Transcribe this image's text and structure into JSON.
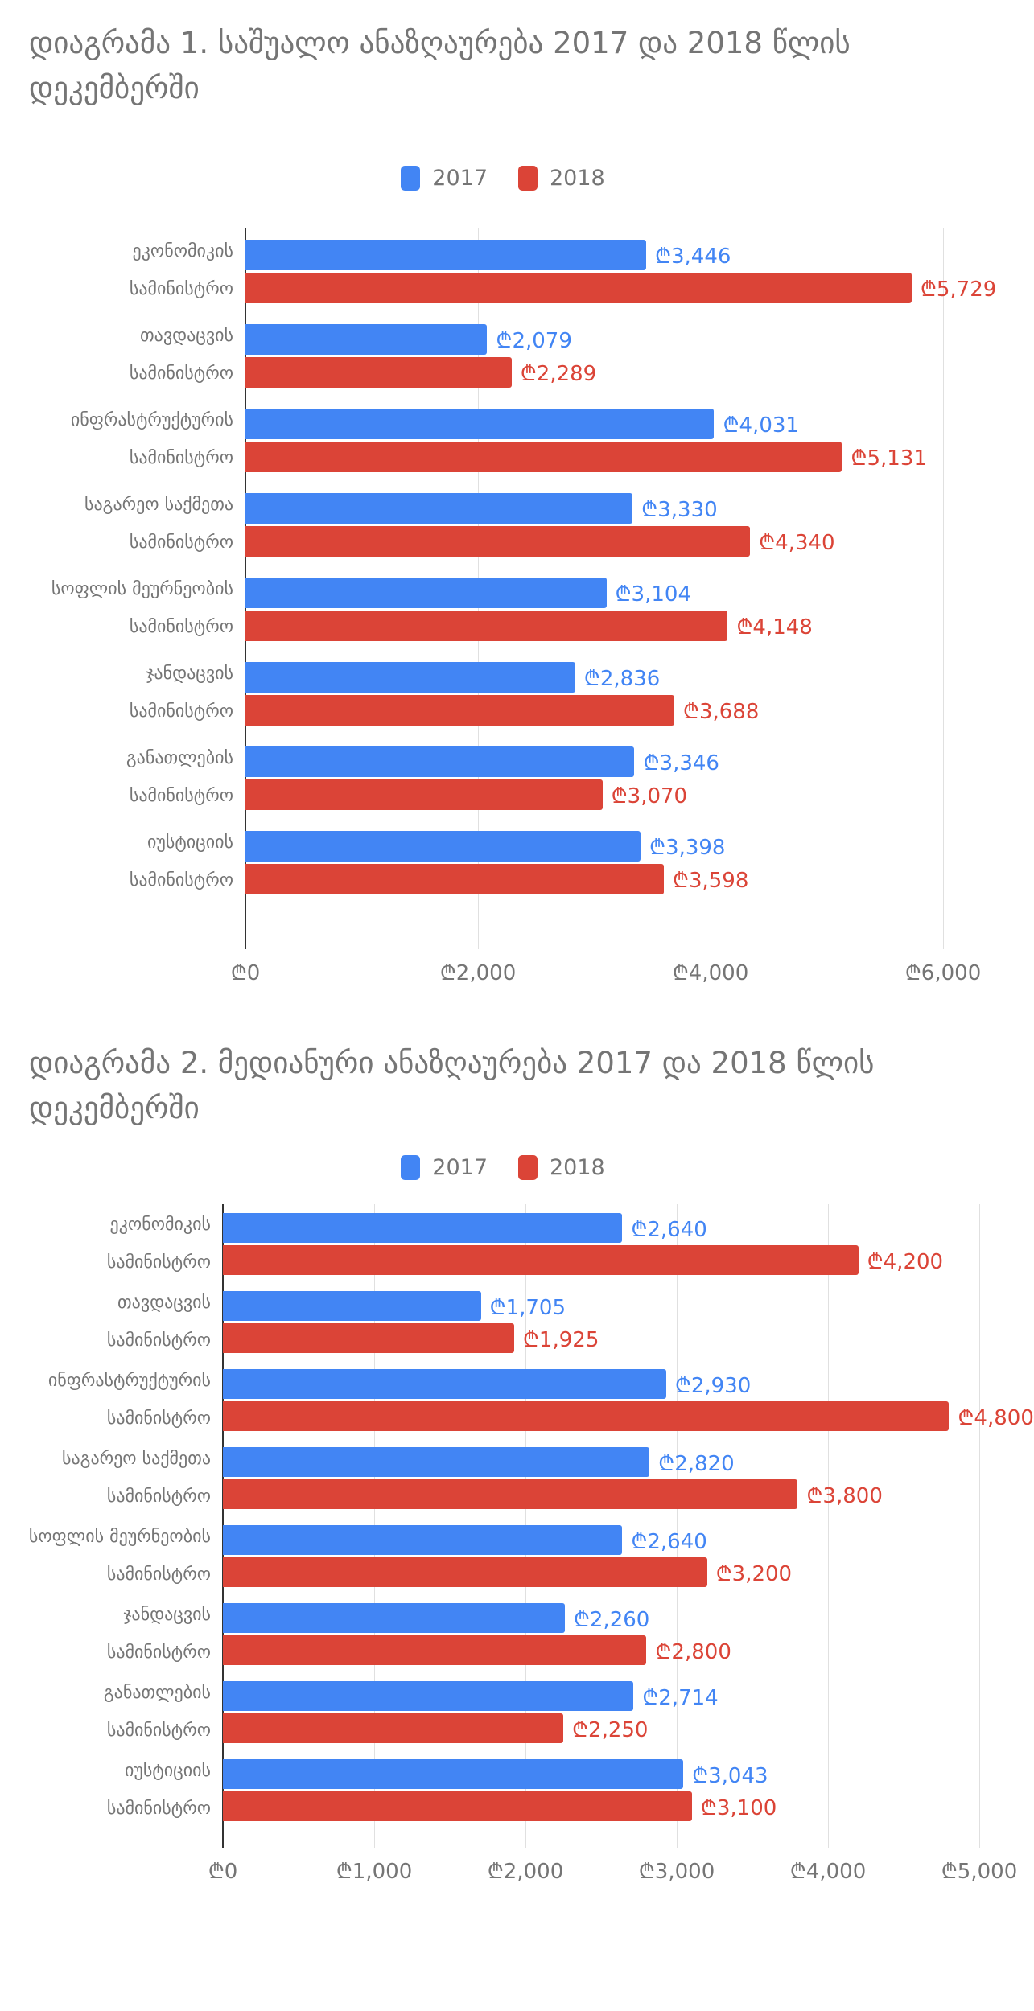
{
  "charts": [
    {
      "title": "დიაგრამა 1. საშუალო ანაზღაურება 2017 და 2018 წლის დეკემბერში",
      "title_lines": [
        "დიაგრამა 1. საშუალო ანაზღაურება 2017 და 2018 წლის",
        "დეკემბერში"
      ],
      "chart_data": {
        "type": "bar",
        "orientation": "horizontal",
        "currency": "₾",
        "grid": true,
        "legend_position": "top-center",
        "xlim": [
          0,
          6000
        ],
        "ticks": [
          {
            "value": 0,
            "label": "₾0"
          },
          {
            "value": 2000,
            "label": "₾2,000"
          },
          {
            "value": 4000,
            "label": "₾4,000"
          },
          {
            "value": 6000,
            "label": "₾6,000"
          }
        ],
        "categories": [
          {
            "label": "ეკონომიკის სამინისტრო",
            "lines": [
              "ეკონომიკის",
              "სამინისტრო"
            ]
          },
          {
            "label": "თავდაცვის სამინისტრო",
            "lines": [
              "თავდაცვის",
              "სამინისტრო"
            ]
          },
          {
            "label": "ინფრასტრუქტურის სამინისტრო",
            "lines": [
              "ინფრასტრუქტურის",
              "სამინისტრო"
            ]
          },
          {
            "label": "საგარეო საქმეთა სამინისტრო",
            "lines": [
              "საგარეო საქმეთა",
              "სამინისტრო"
            ]
          },
          {
            "label": "სოფლის მეურნეობის სამინისტრო",
            "lines": [
              "სოფლის მეურნეობის",
              "სამინისტრო"
            ]
          },
          {
            "label": "ჯანდაცვის სამინისტრო",
            "lines": [
              "ჯანდაცვის",
              "სამინისტრო"
            ]
          },
          {
            "label": "განათლების სამინისტრო",
            "lines": [
              "განათლების",
              "სამინისტრო"
            ]
          },
          {
            "label": "იუსტიციის სამინისტრო",
            "lines": [
              "იუსტიციის",
              "სამინისტრო"
            ]
          }
        ],
        "series": [
          {
            "name": "2017",
            "color": "#4285f4",
            "values": [
              3446,
              2079,
              4031,
              3330,
              3104,
              2836,
              3346,
              3398
            ],
            "labels": [
              "₾3,446",
              "₾2,079",
              "₾4,031",
              "₾3,330",
              "₾3,104",
              "₾2,836",
              "₾3,346",
              "₾3,398"
            ]
          },
          {
            "name": "2018",
            "color": "#db4437",
            "values": [
              5729,
              2289,
              5131,
              4340,
              4148,
              3688,
              3070,
              3598
            ],
            "labels": [
              "₾5,729",
              "₾2,289",
              "₾5,131",
              "₾4,340",
              "₾4,148",
              "₾3,688",
              "₾3,070",
              "₾3,598"
            ]
          }
        ]
      }
    },
    {
      "title": "დიაგრამა 2. მედიანური ანაზღაურება 2017 და 2018 წლის დეკემბერში",
      "title_lines": [
        "დიაგრამა 2. მედიანური ანაზღაურება 2017 და 2018 წლის",
        "დეკემბერში"
      ],
      "chart_data": {
        "type": "bar",
        "orientation": "horizontal",
        "currency": "₾",
        "grid": true,
        "legend_position": "top-center",
        "xlim": [
          0,
          5000
        ],
        "ticks": [
          {
            "value": 0,
            "label": "₾0"
          },
          {
            "value": 1000,
            "label": "₾1,000"
          },
          {
            "value": 2000,
            "label": "₾2,000"
          },
          {
            "value": 3000,
            "label": "₾3,000"
          },
          {
            "value": 4000,
            "label": "₾4,000"
          },
          {
            "value": 5000,
            "label": "₾5,000"
          }
        ],
        "categories": [
          {
            "label": "ეკონომიკის სამინისტრო",
            "lines": [
              "ეკონომიკის",
              "სამინისტრო"
            ]
          },
          {
            "label": "თავდაცვის სამინისტრო",
            "lines": [
              "თავდაცვის",
              "სამინისტრო"
            ]
          },
          {
            "label": "ინფრასტრუქტურის სამინისტრო",
            "lines": [
              "ინფრასტრუქტურის",
              "სამინისტრო"
            ]
          },
          {
            "label": "საგარეო საქმეთა სამინისტრო",
            "lines": [
              "საგარეო საქმეთა",
              "სამინისტრო"
            ]
          },
          {
            "label": "სოფლის მეურნეობის სამინისტრო",
            "lines": [
              "სოფლის მეურნეობის",
              "სამინისტრო"
            ]
          },
          {
            "label": "ჯანდაცვის სამინისტრო",
            "lines": [
              "ჯანდაცვის",
              "სამინისტრო"
            ]
          },
          {
            "label": "განათლების სამინისტრო",
            "lines": [
              "განათლების",
              "სამინისტრო"
            ]
          },
          {
            "label": "იუსტიციის სამინისტრო",
            "lines": [
              "იუსტიციის",
              "სამინისტრო"
            ]
          }
        ],
        "series": [
          {
            "name": "2017",
            "color": "#4285f4",
            "values": [
              2640,
              1705,
              2930,
              2820,
              2640,
              2260,
              2714,
              3043
            ],
            "labels": [
              "₾2,640",
              "₾1,705",
              "₾2,930",
              "₾2,820",
              "₾2,640",
              "₾2,260",
              "₾2,714",
              "₾3,043"
            ]
          },
          {
            "name": "2018",
            "color": "#db4437",
            "values": [
              4200,
              1925,
              4800,
              3800,
              3200,
              2800,
              2250,
              3100
            ],
            "labels": [
              "₾4,200",
              "₾1,925",
              "₾4,800",
              "₾3,800",
              "₾3,200",
              "₾2,800",
              "₾2,250",
              "₾3,100"
            ]
          }
        ]
      }
    }
  ]
}
